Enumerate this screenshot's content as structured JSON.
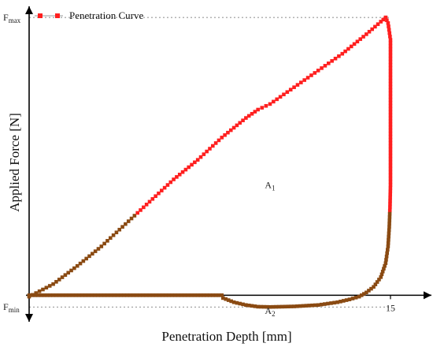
{
  "chart_data": {
    "type": "line",
    "title": "",
    "xlabel": "Penetration Depth [mm]",
    "ylabel": "Applied Force [N]",
    "x_ticks": [
      {
        "value": 15,
        "label": "15"
      }
    ],
    "y_ticks": [
      {
        "value": 1,
        "label": "F",
        "sub": "max"
      },
      {
        "value": 0,
        "label": "F",
        "sub": "min"
      }
    ],
    "xlim": [
      0,
      16.7
    ],
    "ylim": [
      -0.09,
      1.04
    ],
    "legend": {
      "position": "top-left",
      "entry": "Penetration Curve"
    },
    "annotations": [
      {
        "label": "A",
        "sub": "1",
        "x": 10.0,
        "y": 0.4
      },
      {
        "label": "A",
        "sub": "2",
        "x": 10.0,
        "y": -0.05
      }
    ],
    "series": [
      {
        "name": "Penetration Curve",
        "color": "#ff1f1f",
        "marker_color_low": "#8a4a12",
        "loading": {
          "x": [
            0,
            1,
            2,
            3,
            4,
            5,
            6,
            7,
            8,
            9,
            9.5,
            10,
            11,
            12,
            13,
            14,
            14.6,
            14.8
          ],
          "y": [
            0,
            0.045,
            0.11,
            0.18,
            0.26,
            0.34,
            0.42,
            0.49,
            0.57,
            0.64,
            0.67,
            0.69,
            0.75,
            0.81,
            0.87,
            0.94,
            0.985,
            1.0
          ]
        },
        "unloading": {
          "x": [
            14.8,
            14.9,
            15.0,
            15.0,
            15.0,
            15.0,
            14.98,
            14.95,
            14.9,
            14.8,
            14.6,
            14.3,
            14.0,
            13.7,
            13.3,
            12.8,
            12.0,
            11.0,
            10.0,
            9.5,
            9.0,
            8.5,
            8.05,
            8.0,
            7.0,
            5.0,
            3.0,
            1.0,
            0.0
          ],
          "y": [
            1.0,
            0.98,
            0.92,
            0.75,
            0.55,
            0.4,
            0.32,
            0.25,
            0.18,
            0.12,
            0.07,
            0.035,
            0.015,
            0.0,
            -0.01,
            -0.02,
            -0.03,
            -0.035,
            -0.037,
            -0.036,
            -0.03,
            -0.02,
            -0.005,
            0.005,
            0.005,
            0.005,
            0.005,
            0.005,
            0.005
          ]
        }
      }
    ]
  }
}
